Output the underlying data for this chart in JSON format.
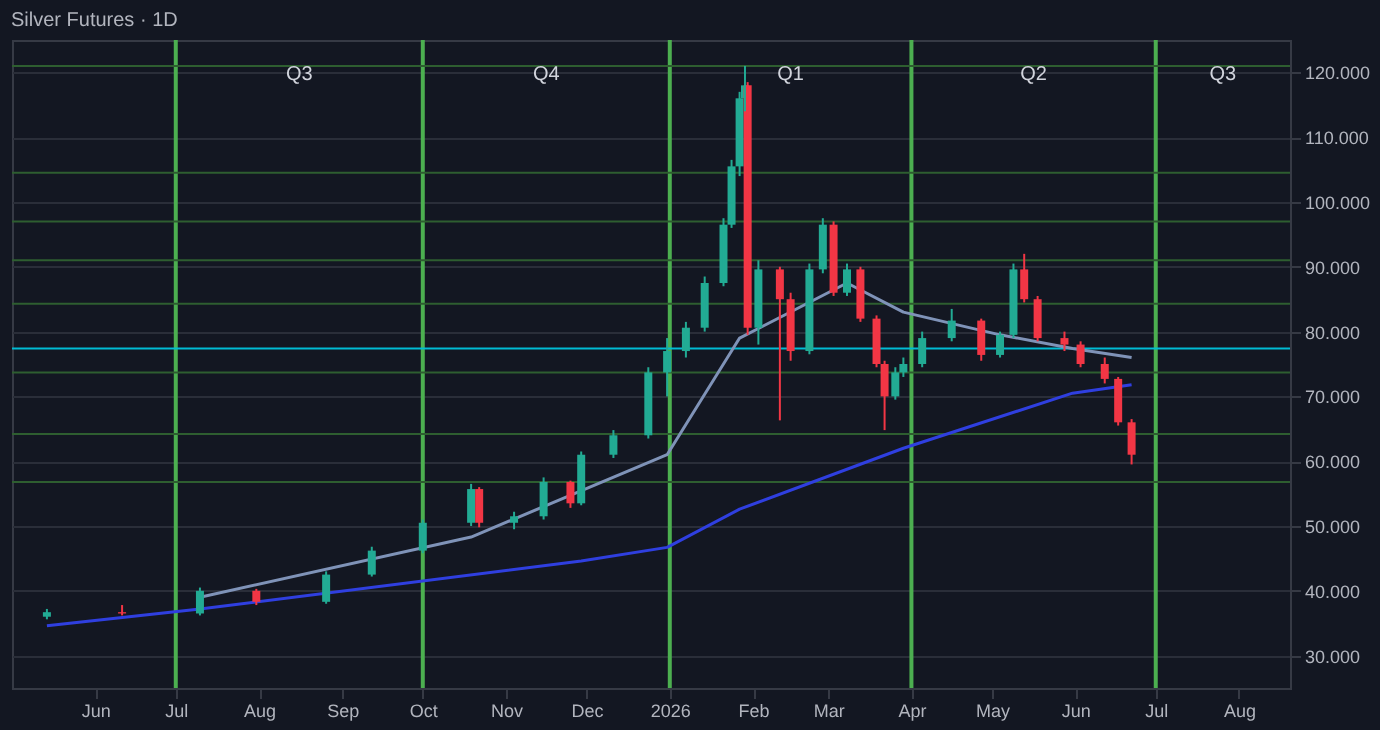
{
  "chart_data": {
    "type": "candlestick",
    "title": "Silver Futures · 1D",
    "x": [
      "2025-05-14",
      "2025-06-11",
      "2025-07-10",
      "2025-07-31",
      "2025-08-26",
      "2025-09-12",
      "2025-10-01",
      "2025-10-19",
      "2025-10-22",
      "2025-11-04",
      "2025-11-15",
      "2025-11-25",
      "2025-11-29",
      "2025-12-11",
      "2025-12-24",
      "2025-12-31",
      "2026-01-07",
      "2026-01-14",
      "2026-01-21",
      "2026-01-24",
      "2026-01-27",
      "2026-01-29",
      "2026-01-30",
      "2026-02-03",
      "2026-02-11",
      "2026-02-15",
      "2026-02-22",
      "2026-02-27",
      "2026-03-03",
      "2026-03-08",
      "2026-03-13",
      "2026-03-19",
      "2026-03-22",
      "2026-03-26",
      "2026-03-29",
      "2026-04-05",
      "2026-04-16",
      "2026-04-27",
      "2026-05-04",
      "2026-05-09",
      "2026-05-13",
      "2026-05-18",
      "2026-05-28",
      "2026-06-03",
      "2026-06-12",
      "2026-06-17",
      "2026-06-22"
    ],
    "ohlc": [
      [
        36,
        37.2,
        35.6,
        36.7
      ],
      [
        36.7,
        37.8,
        36.2,
        36.5
      ],
      [
        36.5,
        40.5,
        36.2,
        40
      ],
      [
        40,
        40.3,
        37.8,
        38.3
      ],
      [
        38.3,
        43,
        38,
        42.5
      ],
      [
        42.5,
        46.8,
        42.2,
        46.2
      ],
      [
        46.2,
        51,
        45.8,
        50.5
      ],
      [
        50.5,
        56.5,
        50,
        55.7
      ],
      [
        55.7,
        56,
        49.8,
        50.5
      ],
      [
        50.5,
        52.2,
        49.5,
        51.5
      ],
      [
        51.5,
        57.5,
        51,
        56.8
      ],
      [
        56.8,
        57,
        52.8,
        53.5
      ],
      [
        53.5,
        61.5,
        53.2,
        61
      ],
      [
        61,
        64.8,
        60.5,
        64
      ],
      [
        64,
        74.5,
        63.5,
        73.7
      ],
      [
        73.7,
        79,
        70,
        77
      ],
      [
        77,
        81.5,
        76,
        80.6
      ],
      [
        80.6,
        88.5,
        80,
        87.5
      ],
      [
        87.5,
        97.5,
        87,
        96.5
      ],
      [
        96.5,
        106.5,
        96,
        105.5
      ],
      [
        105.5,
        117,
        104,
        116
      ],
      [
        116,
        121,
        114,
        118
      ],
      [
        118,
        118.5,
        79.5,
        80.6
      ],
      [
        80.6,
        91,
        78,
        89.6
      ],
      [
        89.6,
        90,
        66.3,
        85
      ],
      [
        85,
        86,
        75.5,
        77
      ],
      [
        77,
        90.5,
        76.5,
        89.6
      ],
      [
        89.6,
        97.5,
        89,
        96.5
      ],
      [
        96.5,
        97,
        85.5,
        86
      ],
      [
        86,
        90.5,
        85.5,
        89.6
      ],
      [
        89.6,
        90,
        81.5,
        82
      ],
      [
        82,
        82.5,
        74.5,
        75
      ],
      [
        75,
        75.5,
        64.8,
        70
      ],
      [
        70,
        74.5,
        69.5,
        73.7
      ],
      [
        73.7,
        76,
        73,
        75
      ],
      [
        75,
        80,
        74.5,
        79
      ],
      [
        79,
        83.5,
        78.5,
        81.7
      ],
      [
        81.7,
        82,
        75.5,
        76.4
      ],
      [
        76.4,
        80,
        76,
        79.5
      ],
      [
        79.5,
        90.5,
        79,
        89.6
      ],
      [
        89.6,
        92,
        84.5,
        85
      ],
      [
        85,
        85.5,
        78.5,
        79
      ],
      [
        79,
        80,
        77,
        78
      ],
      [
        78,
        78.5,
        74.5,
        75
      ],
      [
        75,
        76,
        72,
        72.7
      ],
      [
        72.7,
        73,
        65.5,
        66
      ],
      [
        66,
        66.5,
        59.5,
        61
      ]
    ],
    "colors": [
      "#22ab94",
      "#f23645",
      "#22ab94",
      "#f23645",
      "#22ab94",
      "#22ab94",
      "#22ab94",
      "#22ab94",
      "#f23645",
      "#22ab94",
      "#22ab94",
      "#f23645",
      "#22ab94",
      "#22ab94",
      "#22ab94",
      "#22ab94",
      "#22ab94",
      "#22ab94",
      "#22ab94",
      "#22ab94",
      "#22ab94",
      "#22ab94",
      "#f23645",
      "#22ab94",
      "#f23645",
      "#f23645",
      "#22ab94",
      "#22ab94",
      "#f23645",
      "#22ab94",
      "#f23645",
      "#f23645",
      "#f23645",
      "#22ab94",
      "#22ab94",
      "#22ab94",
      "#22ab94",
      "#f23645",
      "#22ab94",
      "#22ab94",
      "#f23645",
      "#f23645",
      "#f23645",
      "#f23645",
      "#f23645",
      "#f23645",
      "#f23645"
    ],
    "series": [
      {
        "type": "line",
        "color": "#2f3fe0",
        "x": [
          "2025-05-14",
          "2025-07-10",
          "2025-11-29",
          "2025-12-31",
          "2026-01-27",
          "2026-03-29",
          "2026-05-31",
          "2026-06-22"
        ],
        "values": [
          34.6,
          37.2,
          44.6,
          46.7,
          52.6,
          62,
          70.5,
          71.8
        ]
      },
      {
        "type": "line",
        "color": "#7f93b8",
        "x": [
          "2025-07-10",
          "2025-10-19",
          "2025-12-31",
          "2026-01-27",
          "2026-03-08",
          "2026-03-29",
          "2026-05-04",
          "2026-05-31",
          "2026-06-22"
        ],
        "values": [
          39,
          48.3,
          61,
          79,
          87.5,
          83,
          79.5,
          77.4,
          76
        ]
      }
    ],
    "ref_lines": [
      {
        "axis": "x",
        "value": "2025-07-01",
        "color": "#4caf50"
      },
      {
        "axis": "x",
        "value": "2025-10-01",
        "color": "#4caf50"
      },
      {
        "axis": "x",
        "value": "2026-01-01",
        "color": "#4caf50"
      },
      {
        "axis": "x",
        "value": "2026-04-01",
        "color": "#4caf50"
      },
      {
        "axis": "x",
        "value": "2026-07-01",
        "color": "#4caf50"
      },
      {
        "axis": "y",
        "value": 121,
        "color": "#2e5e30"
      },
      {
        "axis": "y",
        "value": 104.5,
        "color": "#2e5e30"
      },
      {
        "axis": "y",
        "value": 97,
        "color": "#2e5e30"
      },
      {
        "axis": "y",
        "value": 91,
        "color": "#2e5e30"
      },
      {
        "axis": "y",
        "value": 84.3,
        "color": "#2e5e30"
      },
      {
        "axis": "y",
        "value": 77.4,
        "color": "#00bcd4"
      },
      {
        "axis": "y",
        "value": 73.7,
        "color": "#2e5e30"
      },
      {
        "axis": "y",
        "value": 64.2,
        "color": "#2e5e30"
      },
      {
        "axis": "y",
        "value": 56.8,
        "color": "#2e5e30"
      }
    ],
    "annotations": [
      "Q3",
      "Q4",
      "Q1",
      "Q2",
      "Q3"
    ],
    "xlim": [
      "2025-05-01",
      "2026-08-20"
    ],
    "xticks": [
      {
        "value": "2025-06-01",
        "label": "Jun"
      },
      {
        "value": "2025-07-01",
        "label": "Jul"
      },
      {
        "value": "2025-08-01",
        "label": "Aug"
      },
      {
        "value": "2025-09-01",
        "label": "Sep"
      },
      {
        "value": "2025-10-01",
        "label": "Oct"
      },
      {
        "value": "2025-11-01",
        "label": "Nov"
      },
      {
        "value": "2025-12-01",
        "label": "Dec"
      },
      {
        "value": "2026-01-01",
        "label": "2026"
      },
      {
        "value": "2026-02-01",
        "label": "Feb"
      },
      {
        "value": "2026-03-01",
        "label": "Mar"
      },
      {
        "value": "2026-04-01",
        "label": "Apr"
      },
      {
        "value": "2026-05-01",
        "label": "May"
      },
      {
        "value": "2026-06-01",
        "label": "Jun"
      },
      {
        "value": "2026-07-01",
        "label": "Jul"
      },
      {
        "value": "2026-08-01",
        "label": "Aug"
      }
    ],
    "ylim": [
      25,
      125
    ],
    "yticks": [
      {
        "value": 30,
        "label": "30.000"
      },
      {
        "value": 40,
        "label": "40.000"
      },
      {
        "value": 50,
        "label": "50.000"
      },
      {
        "value": 60,
        "label": "60.000"
      },
      {
        "value": 70,
        "label": "70.000"
      },
      {
        "value": 80,
        "label": "80.000"
      },
      {
        "value": 90,
        "label": "90.000"
      },
      {
        "value": 100,
        "label": "100.000"
      },
      {
        "value": 110,
        "label": "110.000"
      },
      {
        "value": 120,
        "label": "120.000"
      }
    ],
    "grid": "y",
    "legend": false
  }
}
